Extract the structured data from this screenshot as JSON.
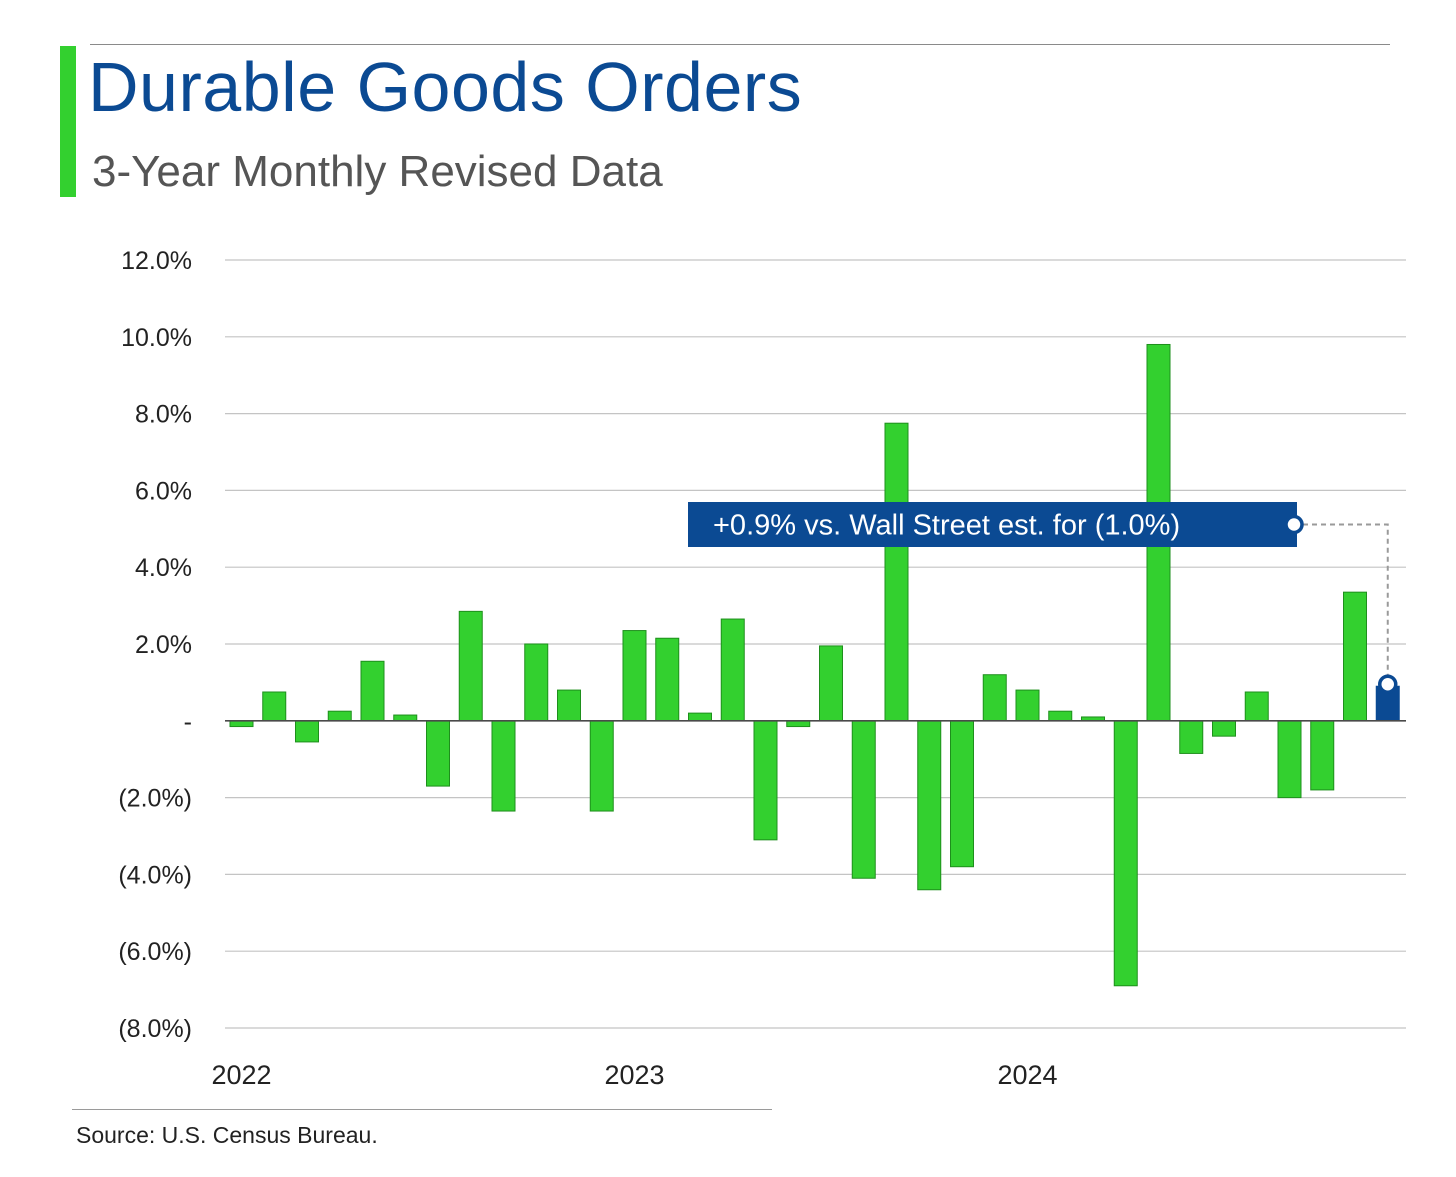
{
  "header": {
    "title": "Durable Goods Orders",
    "subtitle": "3-Year Monthly Revised Data"
  },
  "footer": {
    "source": "Source: U.S. Census Bureau."
  },
  "colors": {
    "bar": "#33d02f",
    "bar_border": "#1e8f1c",
    "highlight_bar": "#0b4a93",
    "annotation_bg": "#0b4a93",
    "grid": "#c4c4c4",
    "axis": "#4a4a4a"
  },
  "chart_data": {
    "type": "bar",
    "title": "Durable Goods Orders",
    "subtitle": "3-Year Monthly Revised Data",
    "ylim": [
      -8,
      12
    ],
    "y_ticks": [
      {
        "value": 12,
        "label": "12.0%"
      },
      {
        "value": 10,
        "label": "10.0%"
      },
      {
        "value": 8,
        "label": "8.0%"
      },
      {
        "value": 6,
        "label": "6.0%"
      },
      {
        "value": 4,
        "label": "4.0%"
      },
      {
        "value": 2,
        "label": "2.0%"
      },
      {
        "value": 0,
        "label": "-"
      },
      {
        "value": -2,
        "label": "(2.0%)"
      },
      {
        "value": -4,
        "label": "(4.0%)"
      },
      {
        "value": -6,
        "label": "(6.0%)"
      },
      {
        "value": -8,
        "label": "(8.0%)"
      }
    ],
    "x_labels": [
      {
        "index": 0,
        "label": "2022"
      },
      {
        "index": 12,
        "label": "2023"
      },
      {
        "index": 24,
        "label": "2024"
      }
    ],
    "grid": true,
    "series": [
      {
        "values": [
          -0.15,
          0.75,
          -0.55,
          0.25,
          1.55,
          0.15,
          -1.7,
          2.85,
          -2.35,
          2.0,
          0.8,
          -2.35,
          2.35,
          2.15,
          0.2,
          2.65,
          -3.1,
          -0.15,
          1.95,
          -4.1,
          7.75,
          -4.4,
          -3.8,
          1.2,
          0.8,
          0.25,
          0.1,
          -6.9,
          9.8,
          -0.85,
          -0.4,
          0.75,
          -2.0,
          -1.8,
          3.35,
          0.9
        ]
      }
    ],
    "highlight_index": 35,
    "annotation": {
      "text": "+0.9% vs. Wall Street est. for (1.0%)",
      "target_index": 35
    }
  }
}
